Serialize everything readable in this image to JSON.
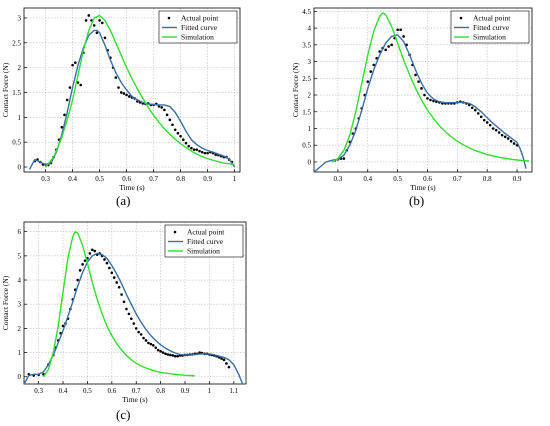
{
  "colors": {
    "actual": "#000000",
    "fitted": "#3a6ea5",
    "simulation": "#33dd33",
    "grid": "#bdbdbd",
    "axis": "#000000"
  },
  "chart_data": [
    {
      "type": "line",
      "panel_label": "(a)",
      "xlabel": "Time (s)",
      "ylabel": "Contact Force (N)",
      "xlim": [
        0.22,
        1.02
      ],
      "ylim": [
        -0.1,
        3.2
      ],
      "xticks": [
        "0.3",
        "0.4",
        "0.5",
        "0.6",
        "0.7",
        "0.8",
        "0.9",
        "1"
      ],
      "xtick_values": [
        0.3,
        0.4,
        0.5,
        0.6,
        0.7,
        0.8,
        0.9,
        1.0
      ],
      "yticks": [
        "0",
        "0.5",
        "1",
        "1.5",
        "2",
        "2.5",
        "3"
      ],
      "ytick_values": [
        0,
        0.5,
        1,
        1.5,
        2,
        2.5,
        3
      ],
      "grid": true,
      "legend": {
        "position": "top-right",
        "entries": [
          "Actual point",
          "Fitted curve",
          "Simulation"
        ]
      },
      "series": [
        {
          "name": "Actual point",
          "kind": "scatter",
          "x": [
            0.26,
            0.27,
            0.28,
            0.29,
            0.3,
            0.31,
            0.32,
            0.33,
            0.34,
            0.35,
            0.36,
            0.37,
            0.38,
            0.39,
            0.4,
            0.41,
            0.42,
            0.43,
            0.44,
            0.45,
            0.46,
            0.47,
            0.48,
            0.49,
            0.5,
            0.51,
            0.52,
            0.53,
            0.54,
            0.55,
            0.56,
            0.57,
            0.58,
            0.59,
            0.6,
            0.61,
            0.62,
            0.63,
            0.64,
            0.65,
            0.66,
            0.67,
            0.68,
            0.69,
            0.7,
            0.71,
            0.72,
            0.73,
            0.74,
            0.75,
            0.76,
            0.77,
            0.78,
            0.79,
            0.8,
            0.81,
            0.82,
            0.83,
            0.84,
            0.85,
            0.86,
            0.87,
            0.88,
            0.89,
            0.9,
            0.91,
            0.92,
            0.93,
            0.94,
            0.95,
            0.96,
            0.97,
            0.98,
            0.99
          ],
          "y": [
            0.12,
            0.15,
            0.1,
            0.05,
            0.05,
            0.04,
            0.08,
            0.2,
            0.35,
            0.55,
            0.8,
            1.05,
            1.35,
            1.6,
            2.05,
            2.1,
            1.7,
            1.65,
            2.3,
            2.95,
            3.05,
            2.95,
            2.85,
            2.7,
            2.95,
            2.9,
            2.6,
            2.35,
            2.2,
            2.0,
            1.8,
            1.6,
            1.5,
            1.48,
            1.45,
            1.42,
            1.4,
            1.38,
            1.32,
            1.3,
            1.28,
            1.27,
            1.28,
            1.25,
            1.25,
            1.27,
            1.22,
            1.2,
            1.15,
            1.05,
            0.95,
            0.85,
            0.75,
            0.68,
            0.62,
            0.55,
            0.48,
            0.42,
            0.38,
            0.35,
            0.35,
            0.32,
            0.3,
            0.28,
            0.28,
            0.3,
            0.28,
            0.25,
            0.24,
            0.22,
            0.2,
            0.2,
            0.15,
            0.1
          ]
        },
        {
          "name": "Fitted curve",
          "kind": "line",
          "x": [
            0.24,
            0.26,
            0.28,
            0.3,
            0.32,
            0.34,
            0.36,
            0.38,
            0.4,
            0.42,
            0.44,
            0.46,
            0.48,
            0.49,
            0.5,
            0.52,
            0.54,
            0.56,
            0.58,
            0.6,
            0.62,
            0.64,
            0.66,
            0.68,
            0.7,
            0.72,
            0.74,
            0.76,
            0.78,
            0.8,
            0.82,
            0.84,
            0.86,
            0.88,
            0.9,
            0.92,
            0.94,
            0.96,
            0.97,
            0.98,
            0.99,
            1.0
          ],
          "y": [
            -0.05,
            0.15,
            0.1,
            0.05,
            0.08,
            0.3,
            0.65,
            1.1,
            1.6,
            2.05,
            2.4,
            2.65,
            2.75,
            2.75,
            2.7,
            2.45,
            2.15,
            1.9,
            1.7,
            1.55,
            1.42,
            1.35,
            1.3,
            1.27,
            1.26,
            1.25,
            1.25,
            1.22,
            1.1,
            0.92,
            0.72,
            0.55,
            0.45,
            0.38,
            0.33,
            0.3,
            0.26,
            0.22,
            0.2,
            0.15,
            0.08,
            0.0
          ]
        },
        {
          "name": "Simulation",
          "kind": "line",
          "x": [
            0.3,
            0.33,
            0.36,
            0.38,
            0.4,
            0.42,
            0.44,
            0.46,
            0.48,
            0.5,
            0.52,
            0.54,
            0.56,
            0.58,
            0.6,
            0.62,
            0.64,
            0.66,
            0.68,
            0.7,
            0.72,
            0.74,
            0.76,
            0.78,
            0.8,
            0.82,
            0.84,
            0.86,
            0.88,
            0.9,
            0.93,
            0.96,
            1.0
          ],
          "y": [
            0.0,
            0.2,
            0.6,
            0.95,
            1.35,
            1.85,
            2.35,
            2.75,
            3.0,
            3.05,
            2.95,
            2.75,
            2.5,
            2.25,
            2.0,
            1.78,
            1.57,
            1.38,
            1.2,
            1.04,
            0.9,
            0.77,
            0.66,
            0.56,
            0.47,
            0.39,
            0.32,
            0.26,
            0.21,
            0.17,
            0.12,
            0.08,
            0.05
          ]
        }
      ]
    },
    {
      "type": "line",
      "panel_label": "(b)",
      "xlabel": "Time (s)",
      "ylabel": "Contact Force (N)",
      "xlim": [
        0.22,
        0.95
      ],
      "ylim": [
        -0.3,
        4.6
      ],
      "xticks": [
        "0.3",
        "0.4",
        "0.5",
        "0.6",
        "0.7",
        "0.8",
        "0.9"
      ],
      "xtick_values": [
        0.3,
        0.4,
        0.5,
        0.6,
        0.7,
        0.8,
        0.9
      ],
      "yticks": [
        "0",
        "0.5",
        "1",
        "1.5",
        "2",
        "2.5",
        "3",
        "3.5",
        "4",
        "4.5"
      ],
      "ytick_values": [
        0,
        0.5,
        1,
        1.5,
        2,
        2.5,
        3,
        3.5,
        4,
        4.5
      ],
      "grid": true,
      "legend": {
        "position": "top-right",
        "entries": [
          "Actual point",
          "Fitted curve",
          "Simulation"
        ]
      },
      "series": [
        {
          "name": "Actual point",
          "kind": "scatter",
          "x": [
            0.29,
            0.3,
            0.31,
            0.32,
            0.33,
            0.34,
            0.35,
            0.36,
            0.37,
            0.38,
            0.39,
            0.4,
            0.41,
            0.42,
            0.43,
            0.44,
            0.45,
            0.46,
            0.47,
            0.48,
            0.49,
            0.5,
            0.51,
            0.52,
            0.53,
            0.54,
            0.55,
            0.56,
            0.57,
            0.58,
            0.59,
            0.6,
            0.61,
            0.62,
            0.63,
            0.64,
            0.65,
            0.66,
            0.67,
            0.68,
            0.69,
            0.7,
            0.71,
            0.72,
            0.73,
            0.74,
            0.75,
            0.76,
            0.77,
            0.78,
            0.79,
            0.8,
            0.81,
            0.82,
            0.83,
            0.84,
            0.85,
            0.86,
            0.87,
            0.88,
            0.89,
            0.9
          ],
          "y": [
            0.05,
            0.08,
            0.1,
            0.1,
            0.35,
            0.6,
            0.85,
            1.0,
            1.3,
            1.6,
            2.0,
            2.4,
            2.7,
            2.9,
            3.1,
            3.3,
            3.4,
            3.35,
            3.45,
            3.5,
            3.7,
            3.95,
            3.95,
            3.75,
            3.5,
            3.2,
            2.9,
            2.6,
            2.4,
            2.2,
            2.0,
            1.9,
            1.85,
            1.82,
            1.8,
            1.78,
            1.75,
            1.75,
            1.75,
            1.75,
            1.75,
            1.78,
            1.8,
            1.78,
            1.75,
            1.7,
            1.62,
            1.55,
            1.45,
            1.35,
            1.25,
            1.18,
            1.1,
            1.0,
            0.95,
            0.88,
            0.8,
            0.75,
            0.7,
            0.62,
            0.55,
            0.5
          ]
        },
        {
          "name": "Fitted curve",
          "kind": "line",
          "x": [
            0.22,
            0.24,
            0.26,
            0.28,
            0.3,
            0.32,
            0.34,
            0.36,
            0.38,
            0.4,
            0.42,
            0.44,
            0.46,
            0.48,
            0.5,
            0.52,
            0.54,
            0.56,
            0.58,
            0.6,
            0.62,
            0.64,
            0.66,
            0.68,
            0.7,
            0.72,
            0.74,
            0.76,
            0.78,
            0.8,
            0.82,
            0.84,
            0.86,
            0.88,
            0.9,
            0.91,
            0.92,
            0.93
          ],
          "y": [
            -0.3,
            -0.15,
            0.0,
            0.05,
            0.08,
            0.2,
            0.5,
            0.95,
            1.55,
            2.2,
            2.75,
            3.2,
            3.55,
            3.75,
            3.8,
            3.6,
            3.2,
            2.75,
            2.35,
            2.05,
            1.88,
            1.8,
            1.77,
            1.77,
            1.78,
            1.78,
            1.75,
            1.65,
            1.5,
            1.32,
            1.15,
            1.0,
            0.85,
            0.72,
            0.58,
            0.4,
            0.15,
            -0.2
          ]
        },
        {
          "name": "Simulation",
          "kind": "line",
          "x": [
            0.28,
            0.3,
            0.32,
            0.34,
            0.36,
            0.38,
            0.4,
            0.42,
            0.44,
            0.45,
            0.46,
            0.48,
            0.5,
            0.52,
            0.54,
            0.56,
            0.58,
            0.6,
            0.62,
            0.64,
            0.66,
            0.68,
            0.7,
            0.72,
            0.74,
            0.76,
            0.78,
            0.8,
            0.82,
            0.84,
            0.86,
            0.88,
            0.9,
            0.92,
            0.94
          ],
          "y": [
            0.0,
            0.1,
            0.35,
            0.8,
            1.5,
            2.35,
            3.2,
            3.9,
            4.35,
            4.45,
            4.4,
            4.05,
            3.55,
            3.05,
            2.6,
            2.2,
            1.85,
            1.55,
            1.3,
            1.08,
            0.9,
            0.75,
            0.62,
            0.51,
            0.42,
            0.34,
            0.28,
            0.22,
            0.18,
            0.14,
            0.11,
            0.08,
            0.06,
            0.04,
            0.03
          ]
        }
      ]
    },
    {
      "type": "line",
      "panel_label": "(c)",
      "xlabel": "Time (s)",
      "ylabel": "Contact Force (N)",
      "xlim": [
        0.24,
        1.15
      ],
      "ylim": [
        -0.3,
        6.4
      ],
      "xticks": [
        "0.3",
        "0.4",
        "0.5",
        "0.6",
        "0.7",
        "0.8",
        "0.9",
        "1",
        "1.1"
      ],
      "xtick_values": [
        0.3,
        0.4,
        0.5,
        0.6,
        0.7,
        0.8,
        0.9,
        1.0,
        1.1
      ],
      "yticks": [
        "0",
        "1",
        "2",
        "3",
        "4",
        "5",
        "6"
      ],
      "ytick_values": [
        0,
        1,
        2,
        3,
        4,
        5,
        6
      ],
      "grid": true,
      "legend": {
        "position": "top-right",
        "entries": [
          "Actual point",
          "Fitted curve",
          "Simulation"
        ]
      },
      "series": [
        {
          "name": "Actual point",
          "kind": "scatter",
          "x": [
            0.26,
            0.28,
            0.3,
            0.32,
            0.34,
            0.36,
            0.37,
            0.38,
            0.39,
            0.4,
            0.41,
            0.42,
            0.43,
            0.44,
            0.45,
            0.46,
            0.47,
            0.48,
            0.49,
            0.5,
            0.51,
            0.52,
            0.53,
            0.54,
            0.55,
            0.56,
            0.57,
            0.58,
            0.59,
            0.6,
            0.61,
            0.62,
            0.63,
            0.64,
            0.65,
            0.66,
            0.67,
            0.68,
            0.69,
            0.7,
            0.71,
            0.72,
            0.73,
            0.74,
            0.75,
            0.76,
            0.77,
            0.78,
            0.79,
            0.8,
            0.81,
            0.82,
            0.83,
            0.84,
            0.85,
            0.86,
            0.87,
            0.88,
            0.89,
            0.9,
            0.91,
            0.92,
            0.93,
            0.94,
            0.95,
            0.96,
            0.97,
            0.98,
            0.99,
            1.0,
            1.01,
            1.02,
            1.03,
            1.04,
            1.05,
            1.06,
            1.07,
            1.08
          ],
          "y": [
            0.1,
            0.05,
            0.08,
            0.1,
            0.5,
            0.9,
            1.2,
            1.5,
            1.8,
            2.1,
            2.2,
            2.4,
            2.8,
            3.2,
            3.6,
            4.0,
            4.4,
            4.65,
            4.8,
            4.9,
            5.1,
            5.25,
            5.2,
            5.05,
            5.1,
            5.0,
            4.85,
            4.7,
            4.5,
            4.3,
            4.1,
            3.9,
            3.7,
            3.4,
            3.1,
            2.8,
            2.6,
            2.4,
            2.2,
            2.0,
            1.85,
            1.75,
            1.6,
            1.5,
            1.4,
            1.35,
            1.3,
            1.2,
            1.1,
            1.05,
            1.0,
            0.95,
            0.92,
            0.9,
            0.88,
            0.85,
            0.85,
            0.88,
            0.88,
            0.9,
            0.9,
            0.92,
            0.92,
            0.95,
            0.95,
            1.0,
            0.98,
            0.95,
            0.95,
            0.92,
            0.9,
            0.88,
            0.85,
            0.8,
            0.75,
            0.7,
            0.55,
            0.4
          ]
        },
        {
          "name": "Fitted curve",
          "kind": "line",
          "x": [
            0.24,
            0.26,
            0.28,
            0.3,
            0.32,
            0.34,
            0.36,
            0.38,
            0.4,
            0.42,
            0.44,
            0.46,
            0.48,
            0.5,
            0.52,
            0.54,
            0.56,
            0.58,
            0.6,
            0.62,
            0.64,
            0.66,
            0.68,
            0.7,
            0.72,
            0.74,
            0.76,
            0.78,
            0.8,
            0.82,
            0.84,
            0.86,
            0.88,
            0.9,
            0.92,
            0.94,
            0.96,
            0.98,
            1.0,
            1.02,
            1.04,
            1.06,
            1.08,
            1.1,
            1.12,
            1.14
          ],
          "y": [
            -0.3,
            0.05,
            0.1,
            0.1,
            0.2,
            0.5,
            0.9,
            1.4,
            1.9,
            2.5,
            3.1,
            3.75,
            4.3,
            4.75,
            5.0,
            5.1,
            5.05,
            4.9,
            4.6,
            4.25,
            3.85,
            3.4,
            3.0,
            2.6,
            2.25,
            1.95,
            1.7,
            1.5,
            1.32,
            1.18,
            1.07,
            0.98,
            0.92,
            0.9,
            0.9,
            0.92,
            0.94,
            0.95,
            0.94,
            0.9,
            0.85,
            0.8,
            0.7,
            0.5,
            0.1,
            -0.4
          ]
        },
        {
          "name": "Simulation",
          "kind": "line",
          "x": [
            0.32,
            0.34,
            0.36,
            0.38,
            0.4,
            0.42,
            0.44,
            0.45,
            0.46,
            0.48,
            0.5,
            0.52,
            0.54,
            0.56,
            0.58,
            0.6,
            0.62,
            0.64,
            0.66,
            0.68,
            0.7,
            0.72,
            0.74,
            0.76,
            0.78,
            0.8,
            0.82,
            0.84,
            0.86,
            0.88,
            0.9,
            0.92,
            0.94
          ],
          "y": [
            0.0,
            0.3,
            1.0,
            2.1,
            3.5,
            4.9,
            5.8,
            6.0,
            5.95,
            5.45,
            4.7,
            3.9,
            3.2,
            2.6,
            2.1,
            1.7,
            1.37,
            1.1,
            0.88,
            0.7,
            0.56,
            0.45,
            0.36,
            0.29,
            0.23,
            0.18,
            0.15,
            0.12,
            0.1,
            0.08,
            0.06,
            0.05,
            0.04
          ]
        }
      ]
    }
  ]
}
